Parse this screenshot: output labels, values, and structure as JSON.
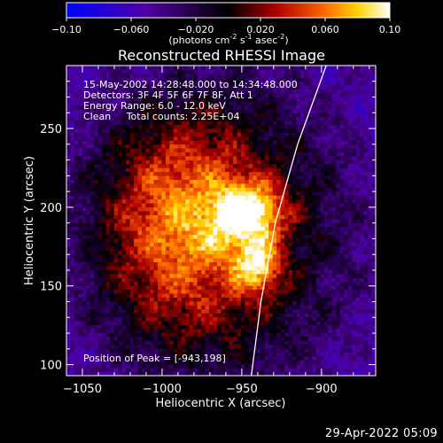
{
  "colorbar": {
    "ticks": [
      "-0.10",
      "-0.060",
      "-0.020",
      "0.020",
      "0.060",
      "0.10"
    ],
    "unit_base": "(photons cm",
    "unit_exp1": "-2",
    "unit_mid": " s",
    "unit_exp2": "-1",
    "unit_mid2": " asec",
    "unit_exp3": "-2",
    "unit_end": ")"
  },
  "chart_data": {
    "type": "heatmap",
    "title": "Reconstructed RHESSI Image",
    "xlabel": "Heliocentric X (arcsec)",
    "ylabel": "Heliocentric Y (arcsec)",
    "xlim": [
      -1060,
      -866
    ],
    "ylim": [
      93,
      290
    ],
    "x_ticks": [
      -1050,
      -1000,
      -950,
      -900
    ],
    "x_tick_labels": [
      "−1050",
      "−1000",
      "−950",
      "−900"
    ],
    "y_ticks": [
      100,
      150,
      200,
      250
    ],
    "y_tick_labels": [
      "100",
      "150",
      "200",
      "250"
    ],
    "color_range": [
      -0.1,
      0.1
    ],
    "colormap": [
      "#0000ff",
      "#5000a0",
      "#000000",
      "#b00000",
      "#ff6a00",
      "#ffd400",
      "#ffffff"
    ],
    "peak": [
      -943,
      198
    ],
    "peak_value": 0.1,
    "sources": [
      {
        "x": -945,
        "y": 198,
        "sx": 14,
        "sy": 12,
        "a": 0.085
      },
      {
        "x": -940,
        "y": 163,
        "sx": 10,
        "sy": 12,
        "a": 0.075
      },
      {
        "x": -962,
        "y": 188,
        "sx": 22,
        "sy": 20,
        "a": 0.035
      },
      {
        "x": -982,
        "y": 165,
        "sx": 32,
        "sy": 40,
        "a": 0.03
      },
      {
        "x": -985,
        "y": 225,
        "sx": 35,
        "sy": 35,
        "a": 0.028
      },
      {
        "x": -1010,
        "y": 185,
        "sx": 28,
        "sy": 45,
        "a": 0.018
      }
    ],
    "limb_curve": [
      [
        -944,
        93
      ],
      [
        -938,
        140
      ],
      [
        -929,
        190
      ],
      [
        -915,
        240
      ],
      [
        -897,
        290
      ]
    ],
    "annotations": [
      "15-May-2002 14:28:48.000 to 14:34:48.000",
      "Detectors: 3F 4F 5F 6F 7F 8F, Att 1",
      "Energy Range: 6.0 - 12.0 keV",
      "Clean     Total counts: 2.25E+04"
    ],
    "peak_label": "Position of Peak = [-943,198]"
  },
  "footer": "29-Apr-2022 05:09"
}
